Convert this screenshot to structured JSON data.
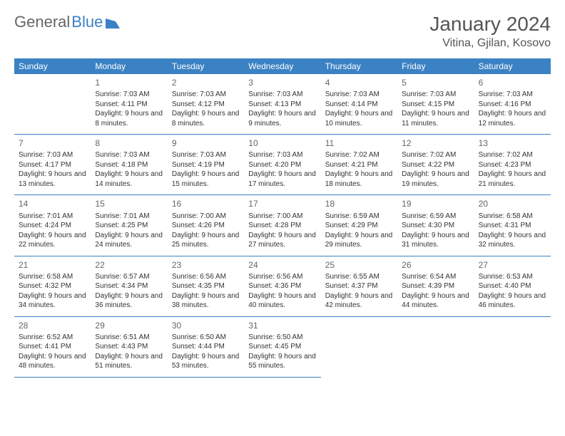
{
  "logo": {
    "part1": "General",
    "part2": "Blue"
  },
  "title": "January 2024",
  "location": "Vitina, Gjilan, Kosovo",
  "weekdays": [
    "Sunday",
    "Monday",
    "Tuesday",
    "Wednesday",
    "Thursday",
    "Friday",
    "Saturday"
  ],
  "colors": {
    "header_bg": "#3b82c4",
    "header_fg": "#ffffff",
    "border": "#3b82c4"
  },
  "weeks": [
    [
      null,
      {
        "d": "1",
        "sr": "7:03 AM",
        "ss": "4:11 PM",
        "dl": "9 hours and 8 minutes."
      },
      {
        "d": "2",
        "sr": "7:03 AM",
        "ss": "4:12 PM",
        "dl": "9 hours and 8 minutes."
      },
      {
        "d": "3",
        "sr": "7:03 AM",
        "ss": "4:13 PM",
        "dl": "9 hours and 9 minutes."
      },
      {
        "d": "4",
        "sr": "7:03 AM",
        "ss": "4:14 PM",
        "dl": "9 hours and 10 minutes."
      },
      {
        "d": "5",
        "sr": "7:03 AM",
        "ss": "4:15 PM",
        "dl": "9 hours and 11 minutes."
      },
      {
        "d": "6",
        "sr": "7:03 AM",
        "ss": "4:16 PM",
        "dl": "9 hours and 12 minutes."
      }
    ],
    [
      {
        "d": "7",
        "sr": "7:03 AM",
        "ss": "4:17 PM",
        "dl": "9 hours and 13 minutes."
      },
      {
        "d": "8",
        "sr": "7:03 AM",
        "ss": "4:18 PM",
        "dl": "9 hours and 14 minutes."
      },
      {
        "d": "9",
        "sr": "7:03 AM",
        "ss": "4:19 PM",
        "dl": "9 hours and 15 minutes."
      },
      {
        "d": "10",
        "sr": "7:03 AM",
        "ss": "4:20 PM",
        "dl": "9 hours and 17 minutes."
      },
      {
        "d": "11",
        "sr": "7:02 AM",
        "ss": "4:21 PM",
        "dl": "9 hours and 18 minutes."
      },
      {
        "d": "12",
        "sr": "7:02 AM",
        "ss": "4:22 PM",
        "dl": "9 hours and 19 minutes."
      },
      {
        "d": "13",
        "sr": "7:02 AM",
        "ss": "4:23 PM",
        "dl": "9 hours and 21 minutes."
      }
    ],
    [
      {
        "d": "14",
        "sr": "7:01 AM",
        "ss": "4:24 PM",
        "dl": "9 hours and 22 minutes."
      },
      {
        "d": "15",
        "sr": "7:01 AM",
        "ss": "4:25 PM",
        "dl": "9 hours and 24 minutes."
      },
      {
        "d": "16",
        "sr": "7:00 AM",
        "ss": "4:26 PM",
        "dl": "9 hours and 25 minutes."
      },
      {
        "d": "17",
        "sr": "7:00 AM",
        "ss": "4:28 PM",
        "dl": "9 hours and 27 minutes."
      },
      {
        "d": "18",
        "sr": "6:59 AM",
        "ss": "4:29 PM",
        "dl": "9 hours and 29 minutes."
      },
      {
        "d": "19",
        "sr": "6:59 AM",
        "ss": "4:30 PM",
        "dl": "9 hours and 31 minutes."
      },
      {
        "d": "20",
        "sr": "6:58 AM",
        "ss": "4:31 PM",
        "dl": "9 hours and 32 minutes."
      }
    ],
    [
      {
        "d": "21",
        "sr": "6:58 AM",
        "ss": "4:32 PM",
        "dl": "9 hours and 34 minutes."
      },
      {
        "d": "22",
        "sr": "6:57 AM",
        "ss": "4:34 PM",
        "dl": "9 hours and 36 minutes."
      },
      {
        "d": "23",
        "sr": "6:56 AM",
        "ss": "4:35 PM",
        "dl": "9 hours and 38 minutes."
      },
      {
        "d": "24",
        "sr": "6:56 AM",
        "ss": "4:36 PM",
        "dl": "9 hours and 40 minutes."
      },
      {
        "d": "25",
        "sr": "6:55 AM",
        "ss": "4:37 PM",
        "dl": "9 hours and 42 minutes."
      },
      {
        "d": "26",
        "sr": "6:54 AM",
        "ss": "4:39 PM",
        "dl": "9 hours and 44 minutes."
      },
      {
        "d": "27",
        "sr": "6:53 AM",
        "ss": "4:40 PM",
        "dl": "9 hours and 46 minutes."
      }
    ],
    [
      {
        "d": "28",
        "sr": "6:52 AM",
        "ss": "4:41 PM",
        "dl": "9 hours and 48 minutes."
      },
      {
        "d": "29",
        "sr": "6:51 AM",
        "ss": "4:43 PM",
        "dl": "9 hours and 51 minutes."
      },
      {
        "d": "30",
        "sr": "6:50 AM",
        "ss": "4:44 PM",
        "dl": "9 hours and 53 minutes."
      },
      {
        "d": "31",
        "sr": "6:50 AM",
        "ss": "4:45 PM",
        "dl": "9 hours and 55 minutes."
      },
      null,
      null,
      null
    ]
  ]
}
